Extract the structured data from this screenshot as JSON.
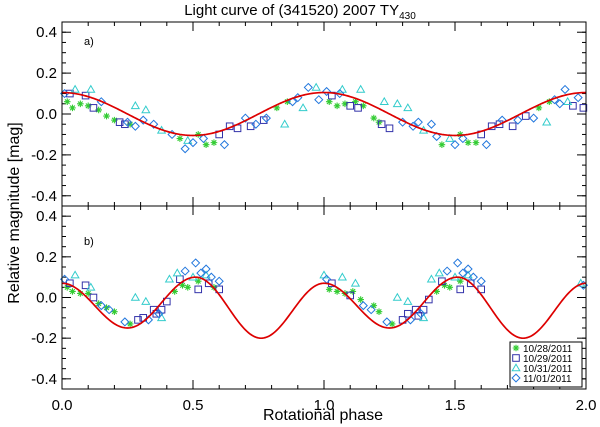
{
  "title": {
    "main": "Light curve of (341520) 2007 TY",
    "sub": "430"
  },
  "xlabel": "Rotational phase",
  "ylabel": "Relative magnitude [mag]",
  "colors": {
    "model": "#dd0000",
    "d1028": "#33cc33",
    "d1029": "#3333aa",
    "d1031": "#33cccc",
    "d1101": "#2277dd"
  },
  "legend": {
    "position": "bottom-right of panel b",
    "entries": [
      {
        "label": "10/28/2011",
        "symbol": "asterisk",
        "color": "#33cc33"
      },
      {
        "label": "10/29/2011",
        "symbol": "square",
        "color": "#3333aa"
      },
      {
        "label": "10/31/2011",
        "symbol": "triangle",
        "color": "#33cccc"
      },
      {
        "label": "11/01/2011",
        "symbol": "diamond",
        "color": "#2277dd"
      }
    ]
  },
  "chart_data": [
    {
      "type": "scatter",
      "panel_label": "a)",
      "xlim": [
        0.0,
        2.0
      ],
      "ylim": [
        -0.45,
        0.45
      ],
      "x_ticks": [
        "0.0",
        "0.5",
        "1.0",
        "1.5",
        "2.0"
      ],
      "y_ticks": [
        "-0.4",
        "-0.2",
        "0.0",
        "0.2",
        "0.4"
      ],
      "x_tick_values": [
        0.0,
        0.5,
        1.0,
        1.5,
        2.0
      ],
      "y_tick_values": [
        -0.4,
        -0.2,
        0.0,
        0.2,
        0.4
      ],
      "model": {
        "kind": "single-peaked sinusoid",
        "amplitude": 0.105,
        "period_in_phase": 1.0,
        "peak_phase": 0.0,
        "min_phase": 0.5
      },
      "series": [
        {
          "name": "10/28/2011",
          "symbol": "asterisk",
          "color": "#33cc33",
          "points": [
            [
              0.02,
              0.06
            ],
            [
              0.04,
              0.03
            ],
            [
              0.07,
              0.05
            ],
            [
              0.1,
              0.04
            ],
            [
              0.14,
              0.02
            ],
            [
              0.17,
              -0.01
            ],
            [
              0.2,
              -0.03
            ],
            [
              0.26,
              -0.05
            ],
            [
              0.45,
              -0.12
            ],
            [
              0.52,
              -0.1
            ],
            [
              0.55,
              -0.15
            ],
            [
              0.58,
              -0.14
            ],
            [
              0.82,
              0.03
            ],
            [
              0.86,
              0.06
            ],
            [
              1.02,
              0.06
            ],
            [
              1.05,
              0.04
            ],
            [
              1.08,
              0.05
            ],
            [
              1.12,
              0.06
            ],
            [
              1.15,
              0.04
            ],
            [
              1.19,
              -0.02
            ],
            [
              1.21,
              -0.04
            ],
            [
              1.45,
              -0.15
            ],
            [
              1.52,
              -0.1
            ],
            [
              1.55,
              -0.14
            ],
            [
              1.58,
              -0.14
            ],
            [
              1.82,
              0.03
            ],
            [
              1.86,
              0.06
            ]
          ]
        },
        {
          "name": "10/29/2011",
          "symbol": "square",
          "color": "#3333aa",
          "points": [
            [
              0.03,
              0.1
            ],
            [
              0.09,
              0.09
            ],
            [
              0.12,
              0.03
            ],
            [
              0.22,
              -0.04
            ],
            [
              0.24,
              -0.05
            ],
            [
              0.6,
              -0.1
            ],
            [
              0.64,
              -0.06
            ],
            [
              0.67,
              -0.07
            ],
            [
              0.72,
              -0.06
            ],
            [
              0.77,
              -0.03
            ],
            [
              1.03,
              0.09
            ],
            [
              1.1,
              0.04
            ],
            [
              1.13,
              0.03
            ],
            [
              1.22,
              -0.05
            ],
            [
              1.25,
              -0.07
            ],
            [
              1.6,
              -0.1
            ],
            [
              1.64,
              -0.06
            ],
            [
              1.67,
              -0.05
            ],
            [
              1.72,
              -0.06
            ],
            [
              1.77,
              -0.01
            ],
            [
              1.95,
              0.04
            ],
            [
              1.99,
              0.03
            ]
          ]
        },
        {
          "name": "10/31/2011",
          "symbol": "triangle",
          "color": "#33cccc",
          "points": [
            [
              0.05,
              0.12
            ],
            [
              0.11,
              0.12
            ],
            [
              0.28,
              0.04
            ],
            [
              0.32,
              0.02
            ],
            [
              0.38,
              -0.08
            ],
            [
              0.48,
              -0.13
            ],
            [
              0.85,
              -0.05
            ],
            [
              0.92,
              0.03
            ],
            [
              0.97,
              0.13
            ],
            [
              1.07,
              0.12
            ],
            [
              1.14,
              0.12
            ],
            [
              1.23,
              0.06
            ],
            [
              1.28,
              0.05
            ],
            [
              1.32,
              0.03
            ],
            [
              1.38,
              -0.08
            ],
            [
              1.48,
              -0.12
            ],
            [
              1.85,
              -0.04
            ],
            [
              1.93,
              0.06
            ]
          ]
        },
        {
          "name": "11/01/2011",
          "symbol": "diamond",
          "color": "#2277dd",
          "points": [
            [
              0.01,
              0.1
            ],
            [
              0.15,
              0.06
            ],
            [
              0.25,
              -0.04
            ],
            [
              0.28,
              -0.06
            ],
            [
              0.31,
              -0.03
            ],
            [
              0.35,
              -0.05
            ],
            [
              0.42,
              -0.1
            ],
            [
              0.47,
              -0.17
            ],
            [
              0.5,
              -0.14
            ],
            [
              0.54,
              -0.12
            ],
            [
              0.62,
              -0.15
            ],
            [
              0.7,
              -0.02
            ],
            [
              0.74,
              -0.05
            ],
            [
              0.78,
              -0.02
            ],
            [
              0.88,
              0.06
            ],
            [
              0.9,
              0.08
            ],
            [
              0.94,
              0.13
            ],
            [
              0.98,
              0.07
            ],
            [
              1.01,
              0.11
            ],
            [
              1.06,
              0.1
            ],
            [
              1.3,
              -0.04
            ],
            [
              1.34,
              -0.06
            ],
            [
              1.36,
              -0.04
            ],
            [
              1.41,
              -0.05
            ],
            [
              1.43,
              -0.11
            ],
            [
              1.5,
              -0.15
            ],
            [
              1.53,
              -0.12
            ],
            [
              1.62,
              -0.15
            ],
            [
              1.68,
              -0.03
            ],
            [
              1.74,
              -0.03
            ],
            [
              1.8,
              -0.02
            ],
            [
              1.88,
              0.07
            ],
            [
              1.9,
              0.05
            ],
            [
              1.92,
              0.12
            ],
            [
              1.97,
              0.08
            ]
          ]
        }
      ]
    },
    {
      "type": "scatter",
      "panel_label": "b)",
      "xlim": [
        0.0,
        2.0
      ],
      "ylim": [
        -0.45,
        0.45
      ],
      "x_ticks": [
        "0.0",
        "0.5",
        "1.0",
        "1.5",
        "2.0"
      ],
      "y_ticks": [
        "-0.4",
        "-0.2",
        "0.0",
        "0.2",
        "0.4"
      ],
      "x_tick_values": [
        0.0,
        0.5,
        1.0,
        1.5,
        2.0
      ],
      "y_tick_values": [
        -0.4,
        -0.2,
        0.0,
        0.2,
        0.4
      ],
      "model": {
        "kind": "double-peaked, unequal minima",
        "maxima": [
          [
            0.0,
            0.07
          ],
          [
            0.51,
            0.1
          ],
          [
            1.0,
            0.07
          ],
          [
            1.51,
            0.1
          ]
        ],
        "minima": [
          [
            0.25,
            -0.15
          ],
          [
            0.76,
            -0.2
          ],
          [
            1.25,
            -0.15
          ],
          [
            1.76,
            -0.2
          ]
        ]
      },
      "series": [
        {
          "name": "10/28/2011",
          "symbol": "asterisk",
          "color": "#33cc33",
          "points": [
            [
              0.02,
              0.05
            ],
            [
              0.04,
              0.03
            ],
            [
              0.07,
              0.02
            ],
            [
              0.1,
              0.02
            ],
            [
              0.14,
              -0.03
            ],
            [
              0.17,
              -0.05
            ],
            [
              0.2,
              -0.07
            ],
            [
              0.26,
              -0.13
            ],
            [
              0.43,
              0.03
            ],
            [
              0.46,
              0.06
            ],
            [
              0.48,
              0.05
            ],
            [
              0.52,
              0.08
            ],
            [
              0.58,
              0.05
            ],
            [
              1.02,
              0.04
            ],
            [
              1.05,
              0.03
            ],
            [
              1.08,
              0.02
            ],
            [
              1.11,
              0.03
            ],
            [
              1.14,
              -0.01
            ],
            [
              1.19,
              -0.04
            ],
            [
              1.21,
              -0.07
            ],
            [
              1.26,
              -0.13
            ],
            [
              1.43,
              0.03
            ],
            [
              1.46,
              0.06
            ],
            [
              1.48,
              0.05
            ],
            [
              1.52,
              0.08
            ]
          ]
        },
        {
          "name": "10/29/2011",
          "symbol": "square",
          "color": "#3333aa",
          "points": [
            [
              0.03,
              0.07
            ],
            [
              0.09,
              0.06
            ],
            [
              0.12,
              0.0
            ],
            [
              0.29,
              -0.11
            ],
            [
              0.31,
              -0.1
            ],
            [
              0.35,
              -0.06
            ],
            [
              0.36,
              -0.08
            ],
            [
              0.38,
              -0.06
            ],
            [
              0.4,
              -0.02
            ],
            [
              0.45,
              0.09
            ],
            [
              0.52,
              0.04
            ],
            [
              0.56,
              0.07
            ],
            [
              0.6,
              0.04
            ],
            [
              1.03,
              0.07
            ],
            [
              1.1,
              0.01
            ],
            [
              1.3,
              -0.11
            ],
            [
              1.32,
              -0.08
            ],
            [
              1.35,
              -0.06
            ],
            [
              1.36,
              -0.09
            ],
            [
              1.38,
              -0.06
            ],
            [
              1.4,
              -0.01
            ],
            [
              1.45,
              0.08
            ],
            [
              1.52,
              0.04
            ],
            [
              1.56,
              0.07
            ],
            [
              1.6,
              0.04
            ]
          ]
        },
        {
          "name": "10/31/2011",
          "symbol": "triangle",
          "color": "#33cccc",
          "points": [
            [
              0.05,
              0.11
            ],
            [
              0.11,
              0.05
            ],
            [
              0.28,
              0.0
            ],
            [
              0.32,
              -0.02
            ],
            [
              0.38,
              -0.1
            ],
            [
              0.41,
              0.09
            ],
            [
              0.44,
              0.12
            ],
            [
              0.5,
              0.1
            ],
            [
              0.55,
              0.11
            ],
            [
              1.0,
              0.11
            ],
            [
              1.07,
              0.1
            ],
            [
              1.12,
              0.07
            ],
            [
              1.28,
              0.0
            ],
            [
              1.32,
              -0.02
            ],
            [
              1.38,
              -0.1
            ],
            [
              1.41,
              0.09
            ],
            [
              1.44,
              0.12
            ],
            [
              1.5,
              0.1
            ],
            [
              1.55,
              0.11
            ],
            [
              1.98,
              0.07
            ]
          ]
        },
        {
          "name": "11/01/2011",
          "symbol": "diamond",
          "color": "#2277dd",
          "points": [
            [
              0.01,
              0.09
            ],
            [
              0.15,
              -0.04
            ],
            [
              0.18,
              -0.06
            ],
            [
              0.24,
              -0.12
            ],
            [
              0.33,
              -0.11
            ],
            [
              0.37,
              -0.08
            ],
            [
              0.47,
              0.13
            ],
            [
              0.51,
              0.17
            ],
            [
              0.53,
              0.12
            ],
            [
              0.55,
              0.14
            ],
            [
              0.57,
              0.1
            ],
            [
              0.6,
              0.08
            ],
            [
              1.01,
              0.09
            ],
            [
              1.15,
              -0.04
            ],
            [
              1.18,
              -0.06
            ],
            [
              1.24,
              -0.12
            ],
            [
              1.33,
              -0.11
            ],
            [
              1.37,
              -0.08
            ],
            [
              1.47,
              0.13
            ],
            [
              1.51,
              0.17
            ],
            [
              1.53,
              0.12
            ],
            [
              1.55,
              0.14
            ],
            [
              1.57,
              0.1
            ],
            [
              1.6,
              0.08
            ],
            [
              1.99,
              0.06
            ]
          ]
        }
      ]
    }
  ]
}
